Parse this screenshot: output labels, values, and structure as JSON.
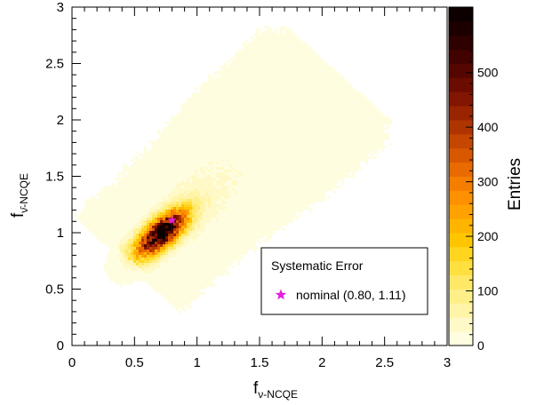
{
  "chart_data": {
    "type": "heatmap",
    "title": "",
    "xlabel": {
      "main": "f",
      "sub": "ν-NCQE"
    },
    "ylabel": {
      "main": "f",
      "sub": "ν̄-NCQE"
    },
    "xlim": [
      0,
      3
    ],
    "ylim": [
      0,
      3
    ],
    "xticks": [
      "0",
      "0.5",
      "1",
      "1.5",
      "2",
      "2.5",
      "3"
    ],
    "yticks": [
      "0",
      "0.5",
      "1",
      "1.5",
      "2",
      "2.5",
      "3"
    ],
    "colorbar": {
      "label": "Entries",
      "range": [
        0,
        620
      ],
      "ticks": [
        "0",
        "100",
        "200",
        "300",
        "400",
        "500"
      ],
      "colors": [
        "#fffde0",
        "#fff9c8",
        "#fff4a8",
        "#ffef88",
        "#ffe866",
        "#ffe040",
        "#ffd520",
        "#ffc600",
        "#ffb400",
        "#ffa200",
        "#ff9000",
        "#f57d00",
        "#e86a00",
        "#d85800",
        "#c44600",
        "#ae3400",
        "#982400",
        "#821600",
        "#6c0c00",
        "#560600",
        "#420200",
        "#2e0000",
        "#1c0000",
        "#0d0000"
      ]
    },
    "distribution": {
      "core": {
        "mean_x": 0.72,
        "mean_y": 1.0,
        "peak_entries": 600
      },
      "tail_towards": [
        1.8,
        2.5
      ]
    },
    "points": [
      {
        "name": "nominal (0.80, 1.11)",
        "x": 0.8,
        "y": 1.11,
        "marker": "star",
        "color": "#e020e0"
      }
    ],
    "legend": {
      "title": "Systematic Error",
      "entries": [
        "nominal (0.80, 1.11)"
      ],
      "placement": "bottom-right"
    }
  }
}
